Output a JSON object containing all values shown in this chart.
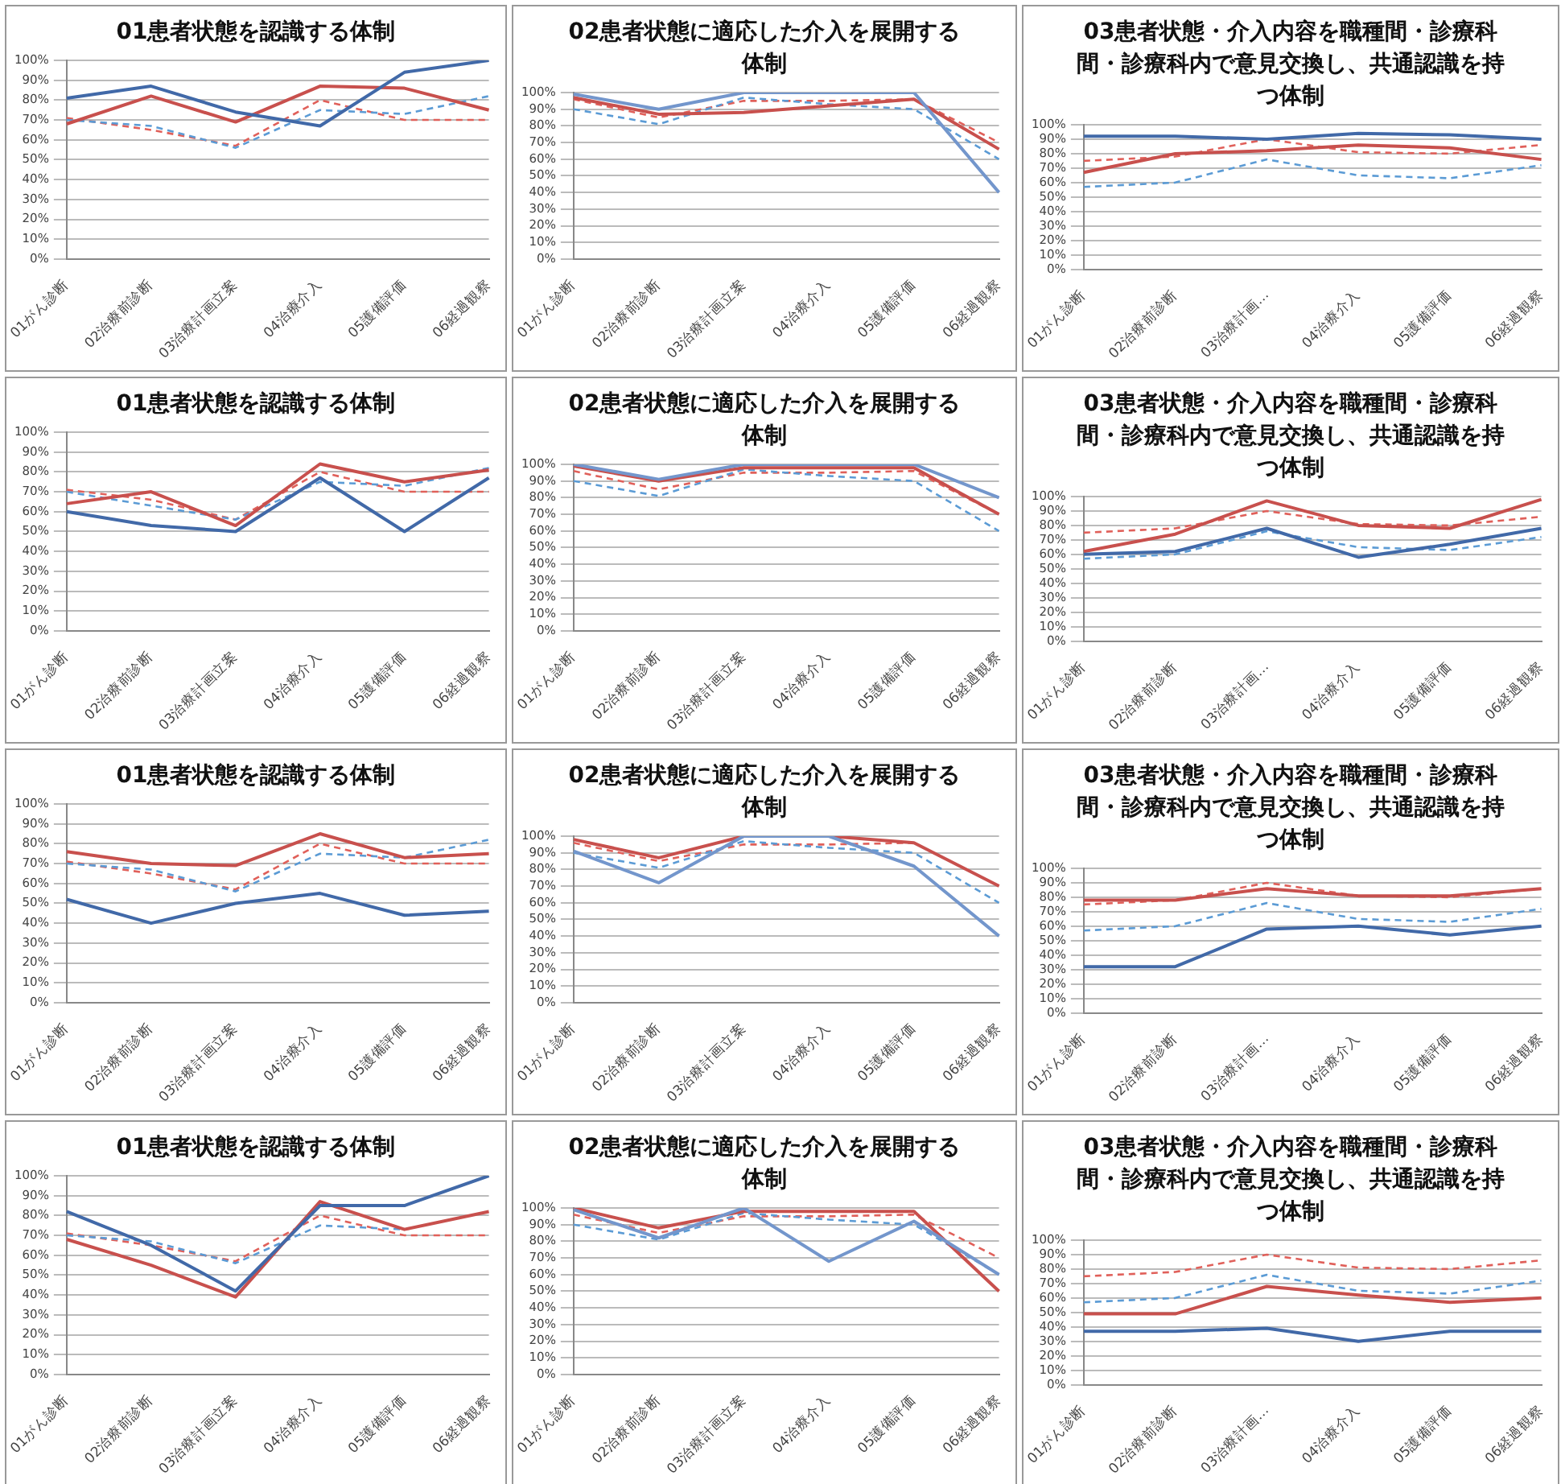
{
  "chart_data": [
    {
      "type": "line",
      "title": "01患者状態を認識する体制",
      "categories": [
        "01がん診断",
        "02治療前診断",
        "03治療計画立案",
        "04治療介入",
        "05護備評価",
        "06経過観察"
      ],
      "ylim": [
        0,
        100
      ],
      "yticks": [
        {
          "value": 0,
          "label": "0%"
        },
        {
          "value": 10,
          "label": "10%"
        },
        {
          "value": 20,
          "label": "20%"
        },
        {
          "value": 30,
          "label": "30%"
        },
        {
          "value": 40,
          "label": "40%"
        },
        {
          "value": 50,
          "label": "50%"
        },
        {
          "value": 60,
          "label": "60%"
        },
        {
          "value": 70,
          "label": "70%"
        },
        {
          "value": 80,
          "label": "80%"
        },
        {
          "value": 90,
          "label": "90%"
        },
        {
          "value": 100,
          "label": "100%"
        }
      ],
      "grid": "y",
      "legend": false,
      "marker": "none",
      "series": [
        {
          "color": "#4169a8",
          "values": [
            81,
            87,
            74,
            67,
            94,
            100
          ]
        },
        {
          "color": "#c8504d",
          "values": [
            68,
            82,
            69,
            87,
            86,
            75
          ]
        },
        {
          "color": "#5b9bd5",
          "line_style": "dashed",
          "values": [
            70,
            67,
            56,
            75,
            73,
            82
          ]
        },
        {
          "color": "#e0605a",
          "line_style": "dashed",
          "values": [
            71,
            65,
            57,
            80,
            70,
            70
          ]
        }
      ]
    },
    {
      "type": "line",
      "title": "02患者状態に適応した介入を展開する体制",
      "categories": [
        "01がん診断",
        "02治療前診断",
        "03治療計画立案",
        "04治療介入",
        "05護備評価",
        "06経過観察"
      ],
      "ylim": [
        0,
        100
      ],
      "yticks": [
        {
          "value": 0,
          "label": "0%"
        },
        {
          "value": 10,
          "label": "10%"
        },
        {
          "value": 20,
          "label": "20%"
        },
        {
          "value": 30,
          "label": "30%"
        },
        {
          "value": 40,
          "label": "40%"
        },
        {
          "value": 50,
          "label": "50%"
        },
        {
          "value": 60,
          "label": "60%"
        },
        {
          "value": 70,
          "label": "70%"
        },
        {
          "value": 80,
          "label": "80%"
        },
        {
          "value": 90,
          "label": "90%"
        },
        {
          "value": 100,
          "label": "100%"
        }
      ],
      "grid": "y",
      "legend": false,
      "marker": "none",
      "series": [
        {
          "color": "#7396cc",
          "values": [
            99,
            90,
            100,
            100,
            100,
            40
          ]
        },
        {
          "color": "#c8504d",
          "values": [
            97,
            87,
            88,
            92,
            96,
            66
          ]
        },
        {
          "color": "#5b9bd5",
          "line_style": "dashed",
          "values": [
            90,
            81,
            97,
            93,
            90,
            60
          ]
        },
        {
          "color": "#e0605a",
          "line_style": "dashed",
          "values": [
            96,
            85,
            95,
            95,
            96,
            70
          ]
        }
      ]
    },
    {
      "type": "line",
      "title": "03患者状態・介入内容を職種間・診療科間・診療科内で意見交換し、共通認識を持つ体制",
      "categories": [
        "01がん診断",
        "02治療前診断",
        "03治療計画…",
        "04治療介入",
        "05護備評価",
        "06経過観察"
      ],
      "ylim": [
        0,
        100
      ],
      "yticks": [
        {
          "value": 0,
          "label": "0%"
        },
        {
          "value": 10,
          "label": "10%"
        },
        {
          "value": 20,
          "label": "20%"
        },
        {
          "value": 30,
          "label": "30%"
        },
        {
          "value": 40,
          "label": "40%"
        },
        {
          "value": 50,
          "label": "50%"
        },
        {
          "value": 60,
          "label": "60%"
        },
        {
          "value": 70,
          "label": "70%"
        },
        {
          "value": 80,
          "label": "80%"
        },
        {
          "value": 90,
          "label": "90%"
        },
        {
          "value": 100,
          "label": "100%"
        }
      ],
      "grid": "y",
      "legend": false,
      "marker": "none",
      "series": [
        {
          "color": "#4169a8",
          "values": [
            92,
            92,
            90,
            94,
            93,
            90
          ]
        },
        {
          "color": "#c8504d",
          "values": [
            67,
            80,
            82,
            86,
            84,
            76
          ]
        },
        {
          "color": "#5b9bd5",
          "line_style": "dashed",
          "values": [
            57,
            60,
            76,
            65,
            63,
            72
          ]
        },
        {
          "color": "#e0605a",
          "line_style": "dashed",
          "values": [
            75,
            78,
            90,
            81,
            80,
            86
          ]
        }
      ]
    },
    {
      "type": "line",
      "title": "01患者状態を認識する体制",
      "categories": [
        "01がん診断",
        "02治療前診断",
        "03治療計画立案",
        "04治療介入",
        "05護備評価",
        "06経過観察"
      ],
      "ylim": [
        0,
        100
      ],
      "yticks": [
        {
          "value": 0,
          "label": "0%"
        },
        {
          "value": 10,
          "label": "10%"
        },
        {
          "value": 20,
          "label": "20%"
        },
        {
          "value": 30,
          "label": "30%"
        },
        {
          "value": 40,
          "label": "40%"
        },
        {
          "value": 50,
          "label": "50%"
        },
        {
          "value": 60,
          "label": "60%"
        },
        {
          "value": 70,
          "label": "70%"
        },
        {
          "value": 80,
          "label": "80%"
        },
        {
          "value": 90,
          "label": "90%"
        },
        {
          "value": 100,
          "label": "100%"
        }
      ],
      "grid": "y",
      "legend": false,
      "marker": "none",
      "series": [
        {
          "color": "#4169a8",
          "values": [
            60,
            53,
            50,
            77,
            50,
            77
          ]
        },
        {
          "color": "#c8504d",
          "values": [
            64,
            70,
            53,
            84,
            75,
            81
          ]
        },
        {
          "color": "#5b9bd5",
          "line_style": "dashed",
          "values": [
            70,
            63,
            56,
            75,
            73,
            82
          ]
        },
        {
          "color": "#e0605a",
          "line_style": "dashed",
          "values": [
            71,
            66,
            56,
            80,
            70,
            70
          ]
        }
      ]
    },
    {
      "type": "line",
      "title": "02患者状態に適応した介入を展開する体制",
      "categories": [
        "01がん診断",
        "02治療前診断",
        "03治療計画立案",
        "04治療介入",
        "05護備評価",
        "06経過観察"
      ],
      "ylim": [
        0,
        100
      ],
      "yticks": [
        {
          "value": 0,
          "label": "0%"
        },
        {
          "value": 10,
          "label": "10%"
        },
        {
          "value": 20,
          "label": "20%"
        },
        {
          "value": 30,
          "label": "30%"
        },
        {
          "value": 40,
          "label": "40%"
        },
        {
          "value": 50,
          "label": "50%"
        },
        {
          "value": 60,
          "label": "60%"
        },
        {
          "value": 70,
          "label": "70%"
        },
        {
          "value": 80,
          "label": "80%"
        },
        {
          "value": 90,
          "label": "90%"
        },
        {
          "value": 100,
          "label": "100%"
        }
      ],
      "grid": "y",
      "legend": false,
      "marker": "none",
      "series": [
        {
          "color": "#7396cc",
          "values": [
            100,
            91,
            100,
            100,
            100,
            80
          ]
        },
        {
          "color": "#c8504d",
          "values": [
            99,
            90,
            98,
            98,
            98,
            70
          ]
        },
        {
          "color": "#5b9bd5",
          "line_style": "dashed",
          "values": [
            90,
            81,
            97,
            93,
            90,
            60
          ]
        },
        {
          "color": "#e0605a",
          "line_style": "dashed",
          "values": [
            96,
            85,
            95,
            95,
            96,
            70
          ]
        }
      ]
    },
    {
      "type": "line",
      "title": "03患者状態・介入内容を職種間・診療科間・診療科内で意見交換し、共通認識を持つ体制",
      "categories": [
        "01がん診断",
        "02治療前診断",
        "03治療計画…",
        "04治療介入",
        "05護備評価",
        "06経過観察"
      ],
      "ylim": [
        0,
        100
      ],
      "yticks": [
        {
          "value": 0,
          "label": "0%"
        },
        {
          "value": 10,
          "label": "10%"
        },
        {
          "value": 20,
          "label": "20%"
        },
        {
          "value": 30,
          "label": "30%"
        },
        {
          "value": 40,
          "label": "40%"
        },
        {
          "value": 50,
          "label": "50%"
        },
        {
          "value": 60,
          "label": "60%"
        },
        {
          "value": 70,
          "label": "70%"
        },
        {
          "value": 80,
          "label": "80%"
        },
        {
          "value": 90,
          "label": "90%"
        },
        {
          "value": 100,
          "label": "100%"
        }
      ],
      "grid": "y",
      "legend": false,
      "marker": "none",
      "series": [
        {
          "color": "#4169a8",
          "values": [
            60,
            62,
            78,
            58,
            67,
            78
          ]
        },
        {
          "color": "#c8504d",
          "values": [
            62,
            74,
            97,
            80,
            78,
            98
          ]
        },
        {
          "color": "#5b9bd5",
          "line_style": "dashed",
          "values": [
            57,
            60,
            76,
            65,
            63,
            72
          ]
        },
        {
          "color": "#e0605a",
          "line_style": "dashed",
          "values": [
            75,
            78,
            90,
            81,
            80,
            86
          ]
        }
      ]
    },
    {
      "type": "line",
      "title": "01患者状態を認識する体制",
      "categories": [
        "01がん診断",
        "02治療前診断",
        "03治療計画立案",
        "04治療介入",
        "05護備評価",
        "06経過観察"
      ],
      "ylim": [
        0,
        100
      ],
      "yticks": [
        {
          "value": 0,
          "label": "0%"
        },
        {
          "value": 10,
          "label": "10%"
        },
        {
          "value": 20,
          "label": "20%"
        },
        {
          "value": 30,
          "label": "30%"
        },
        {
          "value": 40,
          "label": "40%"
        },
        {
          "value": 50,
          "label": "50%"
        },
        {
          "value": 60,
          "label": "60%"
        },
        {
          "value": 70,
          "label": "70%"
        },
        {
          "value": 80,
          "label": "80%"
        },
        {
          "value": 90,
          "label": "90%"
        },
        {
          "value": 100,
          "label": "100%"
        }
      ],
      "grid": "y",
      "legend": false,
      "marker": "none",
      "series": [
        {
          "color": "#4169a8",
          "values": [
            52,
            40,
            50,
            55,
            44,
            46
          ]
        },
        {
          "color": "#c8504d",
          "values": [
            76,
            70,
            69,
            85,
            73,
            75
          ]
        },
        {
          "color": "#5b9bd5",
          "line_style": "dashed",
          "values": [
            70,
            67,
            56,
            75,
            73,
            82
          ]
        },
        {
          "color": "#e0605a",
          "line_style": "dashed",
          "values": [
            71,
            65,
            57,
            80,
            70,
            70
          ]
        }
      ]
    },
    {
      "type": "line",
      "title": "02患者状態に適応した介入を展開する体制",
      "categories": [
        "01がん診断",
        "02治療前診断",
        "03治療計画立案",
        "04治療介入",
        "05護備評価",
        "06経過観察"
      ],
      "ylim": [
        0,
        100
      ],
      "yticks": [
        {
          "value": 0,
          "label": "0%"
        },
        {
          "value": 10,
          "label": "10%"
        },
        {
          "value": 20,
          "label": "20%"
        },
        {
          "value": 30,
          "label": "30%"
        },
        {
          "value": 40,
          "label": "40%"
        },
        {
          "value": 50,
          "label": "50%"
        },
        {
          "value": 60,
          "label": "60%"
        },
        {
          "value": 70,
          "label": "70%"
        },
        {
          "value": 80,
          "label": "80%"
        },
        {
          "value": 90,
          "label": "90%"
        },
        {
          "value": 100,
          "label": "100%"
        }
      ],
      "grid": "y",
      "legend": false,
      "marker": "none",
      "series": [
        {
          "color": "#7396cc",
          "values": [
            91,
            72,
            100,
            100,
            82,
            40
          ]
        },
        {
          "color": "#c8504d",
          "values": [
            98,
            87,
            100,
            100,
            96,
            70
          ]
        },
        {
          "color": "#5b9bd5",
          "line_style": "dashed",
          "values": [
            90,
            81,
            97,
            93,
            90,
            60
          ]
        },
        {
          "color": "#e0605a",
          "line_style": "dashed",
          "values": [
            96,
            85,
            95,
            95,
            96,
            70
          ]
        }
      ]
    },
    {
      "type": "line",
      "title": "03患者状態・介入内容を職種間・診療科間・診療科内で意見交換し、共通認識を持つ体制",
      "categories": [
        "01がん診断",
        "02治療前診断",
        "03治療計画…",
        "04治療介入",
        "05護備評価",
        "06経過観察"
      ],
      "ylim": [
        0,
        100
      ],
      "yticks": [
        {
          "value": 0,
          "label": "0%"
        },
        {
          "value": 10,
          "label": "10%"
        },
        {
          "value": 20,
          "label": "20%"
        },
        {
          "value": 30,
          "label": "30%"
        },
        {
          "value": 40,
          "label": "40%"
        },
        {
          "value": 50,
          "label": "50%"
        },
        {
          "value": 60,
          "label": "60%"
        },
        {
          "value": 70,
          "label": "70%"
        },
        {
          "value": 80,
          "label": "80%"
        },
        {
          "value": 90,
          "label": "90%"
        },
        {
          "value": 100,
          "label": "100%"
        }
      ],
      "grid": "y",
      "legend": false,
      "marker": "none",
      "series": [
        {
          "color": "#4169a8",
          "values": [
            32,
            32,
            58,
            60,
            54,
            60
          ]
        },
        {
          "color": "#c8504d",
          "values": [
            78,
            78,
            86,
            81,
            81,
            86
          ]
        },
        {
          "color": "#5b9bd5",
          "line_style": "dashed",
          "values": [
            57,
            60,
            76,
            65,
            63,
            72
          ]
        },
        {
          "color": "#e0605a",
          "line_style": "dashed",
          "values": [
            75,
            78,
            90,
            81,
            80,
            86
          ]
        }
      ]
    },
    {
      "type": "line",
      "title": "01患者状態を認識する体制",
      "categories": [
        "01がん診断",
        "02治療前診断",
        "03治療計画立案",
        "04治療介入",
        "05護備評価",
        "06経過観察"
      ],
      "ylim": [
        0,
        100
      ],
      "yticks": [
        {
          "value": 0,
          "label": "0%"
        },
        {
          "value": 10,
          "label": "10%"
        },
        {
          "value": 20,
          "label": "20%"
        },
        {
          "value": 30,
          "label": "30%"
        },
        {
          "value": 40,
          "label": "40%"
        },
        {
          "value": 50,
          "label": "50%"
        },
        {
          "value": 60,
          "label": "60%"
        },
        {
          "value": 70,
          "label": "70%"
        },
        {
          "value": 80,
          "label": "80%"
        },
        {
          "value": 90,
          "label": "90%"
        },
        {
          "value": 100,
          "label": "100%"
        }
      ],
      "grid": "y",
      "legend": false,
      "marker": "none",
      "series": [
        {
          "color": "#4169a8",
          "values": [
            82,
            65,
            42,
            85,
            85,
            100
          ]
        },
        {
          "color": "#c8504d",
          "values": [
            68,
            55,
            39,
            87,
            73,
            82
          ]
        },
        {
          "color": "#5b9bd5",
          "line_style": "dashed",
          "values": [
            70,
            67,
            56,
            75,
            73,
            null
          ]
        },
        {
          "color": "#e0605a",
          "line_style": "dashed",
          "values": [
            71,
            65,
            57,
            80,
            70,
            70
          ]
        }
      ]
    },
    {
      "type": "line",
      "title": "02患者状態に適応した介入を展開する体制",
      "categories": [
        "01がん診断",
        "02治療前診断",
        "03治療計画立案",
        "04治療介入",
        "05護備評価",
        "06経過観察"
      ],
      "ylim": [
        0,
        100
      ],
      "yticks": [
        {
          "value": 0,
          "label": "0%"
        },
        {
          "value": 10,
          "label": "10%"
        },
        {
          "value": 20,
          "label": "20%"
        },
        {
          "value": 30,
          "label": "30%"
        },
        {
          "value": 40,
          "label": "40%"
        },
        {
          "value": 50,
          "label": "50%"
        },
        {
          "value": 60,
          "label": "60%"
        },
        {
          "value": 70,
          "label": "70%"
        },
        {
          "value": 80,
          "label": "80%"
        },
        {
          "value": 90,
          "label": "90%"
        },
        {
          "value": 100,
          "label": "100%"
        }
      ],
      "grid": "y",
      "legend": false,
      "marker": "none",
      "series": [
        {
          "color": "#7396cc",
          "values": [
            99,
            82,
            100,
            68,
            92,
            60
          ]
        },
        {
          "color": "#c8504d",
          "values": [
            100,
            88,
            98,
            98,
            98,
            50
          ]
        },
        {
          "color": "#5b9bd5",
          "line_style": "dashed",
          "values": [
            90,
            81,
            97,
            93,
            90,
            60
          ]
        },
        {
          "color": "#e0605a",
          "line_style": "dashed",
          "values": [
            96,
            85,
            95,
            95,
            96,
            70
          ]
        }
      ]
    },
    {
      "type": "line",
      "title": "03患者状態・介入内容を職種間・診療科間・診療科内で意見交換し、共通認識を持つ体制",
      "categories": [
        "01がん診断",
        "02治療前診断",
        "03治療計画…",
        "04治療介入",
        "05護備評価",
        "06経過観察"
      ],
      "ylim": [
        0,
        100
      ],
      "yticks": [
        {
          "value": 0,
          "label": "0%"
        },
        {
          "value": 10,
          "label": "10%"
        },
        {
          "value": 20,
          "label": "20%"
        },
        {
          "value": 30,
          "label": "30%"
        },
        {
          "value": 40,
          "label": "40%"
        },
        {
          "value": 50,
          "label": "50%"
        },
        {
          "value": 60,
          "label": "60%"
        },
        {
          "value": 70,
          "label": "70%"
        },
        {
          "value": 80,
          "label": "80%"
        },
        {
          "value": 90,
          "label": "90%"
        },
        {
          "value": 100,
          "label": "100%"
        }
      ],
      "grid": "y",
      "legend": false,
      "marker": "none",
      "series": [
        {
          "color": "#4169a8",
          "values": [
            37,
            37,
            39,
            30,
            37,
            37
          ]
        },
        {
          "color": "#c8504d",
          "values": [
            49,
            49,
            68,
            62,
            57,
            60
          ]
        },
        {
          "color": "#5b9bd5",
          "line_style": "dashed",
          "values": [
            57,
            60,
            76,
            65,
            63,
            72
          ]
        },
        {
          "color": "#e0605a",
          "line_style": "dashed",
          "values": [
            75,
            78,
            90,
            81,
            80,
            86
          ]
        }
      ]
    }
  ]
}
